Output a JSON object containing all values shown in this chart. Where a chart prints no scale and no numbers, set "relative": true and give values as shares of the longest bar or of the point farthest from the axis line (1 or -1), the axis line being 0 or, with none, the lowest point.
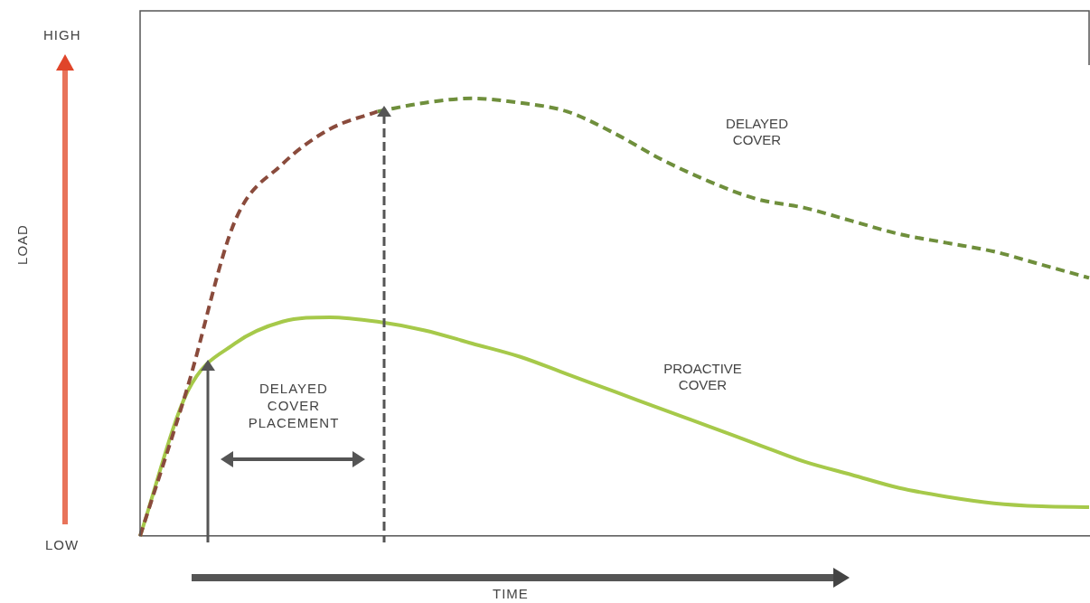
{
  "chart_data": {
    "type": "line",
    "relative": true,
    "annotations": [
      "HIGH",
      "LOW",
      "DELAYED COVER PLACEMENT",
      "LOAD",
      "TIME"
    ],
    "categories": [
      null,
      null,
      null,
      null,
      null,
      null,
      null,
      null,
      null,
      null,
      null,
      null,
      null,
      null,
      null,
      null,
      null,
      null,
      null,
      null,
      null
    ],
    "series": [
      {
        "color": "#8a4b3c",
        "line_style": "dashed",
        "values": [
          0,
          0.34,
          0.72,
          0.85,
          0.93,
          0.97,
          null,
          null,
          null,
          null,
          null,
          null,
          null,
          null,
          null,
          null,
          null,
          null,
          null,
          null,
          null
        ]
      },
      {
        "name": "DELAYED COVER",
        "color": "#6f8f3c",
        "line_style": "dashed",
        "values": [
          null,
          null,
          null,
          null,
          null,
          0.97,
          0.99,
          1,
          0.99,
          0.97,
          0.92,
          0.86,
          0.81,
          0.77,
          0.75,
          0.72,
          0.69,
          0.67,
          0.65,
          0.62,
          0.59
        ]
      },
      {
        "name": "PROACTIVE COVER",
        "color": "#a6c94a",
        "line_style": "solid",
        "values": [
          0,
          0.33,
          0.44,
          0.49,
          0.5,
          0.49,
          0.47,
          0.44,
          0.41,
          0.37,
          0.33,
          0.29,
          0.25,
          0.21,
          0.17,
          0.14,
          0.11,
          0.09,
          0.075,
          0.068,
          0.066
        ]
      }
    ],
    "grid": false,
    "legend": false,
    "marker": "none"
  }
}
